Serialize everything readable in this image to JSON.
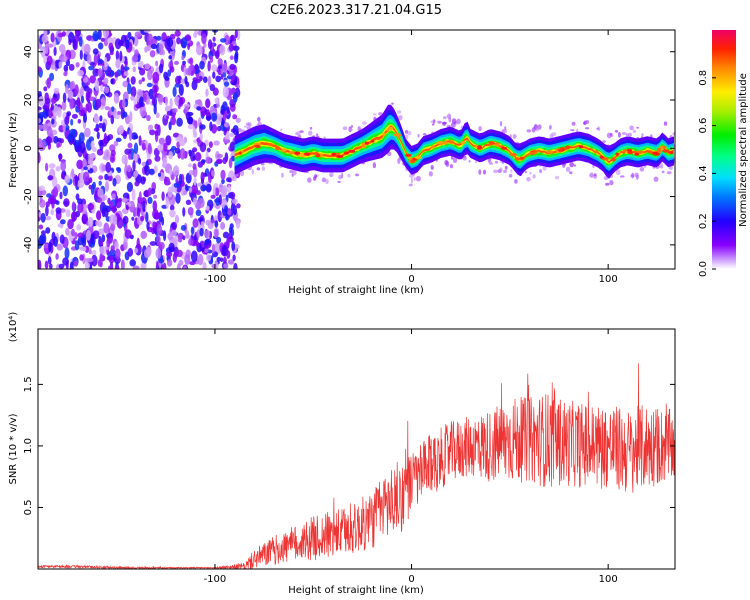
{
  "title": "C2E6.2023.317.21.04.G15",
  "chart_data": [
    {
      "type": "heatmap",
      "xlabel": "Height of straight line (km)",
      "ylabel": "Frequency (Hz)",
      "xlim": [
        -190,
        134
      ],
      "ylim": [
        -50,
        49
      ],
      "xticks": [
        -100,
        0,
        100
      ],
      "xtick_labels": [
        "-100",
        "0",
        "100"
      ],
      "yticks": [
        -40,
        -20,
        0,
        20,
        40
      ],
      "ytick_labels": [
        "-40",
        "-20",
        "0",
        "20",
        "40"
      ],
      "noise_region_x": [
        -190,
        -90
      ],
      "ridge": {
        "x": [
          -90,
          -85,
          -80,
          -75,
          -70,
          -65,
          -60,
          -55,
          -50,
          -45,
          -40,
          -35,
          -30,
          -25,
          -20,
          -15,
          -12,
          -10,
          -8,
          -5,
          -3,
          0,
          3,
          6,
          10,
          15,
          20,
          25,
          28,
          30,
          35,
          40,
          45,
          50,
          53,
          55,
          58,
          60,
          65,
          70,
          75,
          80,
          85,
          90,
          95,
          98,
          100,
          103,
          106,
          110,
          115,
          120,
          125,
          128,
          130,
          134
        ],
        "freq": [
          -3,
          -1,
          1,
          2,
          1,
          -1,
          -2,
          -3,
          -2,
          -3,
          -3,
          -3,
          -1,
          1,
          3,
          5,
          8,
          9,
          7,
          2,
          -2,
          -5,
          -4,
          -1,
          0,
          2,
          3,
          1,
          5,
          2,
          0,
          2,
          1,
          -1,
          -4,
          -5,
          -3,
          -2,
          -1,
          -2,
          -1,
          0,
          1,
          0,
          -2,
          -4,
          -6,
          -4,
          -2,
          -1,
          -2,
          -1,
          -2,
          1,
          -2,
          -1
        ],
        "width_hz": [
          8,
          8,
          8,
          8,
          7,
          7,
          7,
          7,
          7,
          7,
          7,
          7,
          7,
          7,
          8,
          9,
          10,
          9,
          8,
          7,
          6,
          6,
          6,
          6,
          6,
          6,
          6,
          6,
          7,
          6,
          6,
          6,
          6,
          6,
          6,
          7,
          6,
          6,
          6,
          6,
          6,
          6,
          6,
          6,
          6,
          6,
          7,
          6,
          6,
          6,
          6,
          6,
          6,
          6,
          6,
          6
        ]
      },
      "colorbar": {
        "label": "Normalized spectral amplitude",
        "range": [
          0,
          1
        ],
        "ticks": [
          0.0,
          0.2,
          0.4,
          0.6,
          0.8
        ],
        "tick_labels": [
          "0.0",
          "0.2",
          "0.4",
          "0.6",
          "0.8"
        ]
      }
    },
    {
      "type": "line",
      "xlabel": "Height of straight line (km)",
      "ylabel": "SNR (10 * v/v)",
      "scale_label": "(x10⁴)",
      "xlim": [
        -190,
        134
      ],
      "ylim": [
        0,
        1.95
      ],
      "xticks": [
        -100,
        0,
        100
      ],
      "xtick_labels": [
        "-100",
        "0",
        "100"
      ],
      "yticks": [
        0.5,
        1.0,
        1.5
      ],
      "ytick_labels": [
        "0.5",
        "1.0",
        "1.5"
      ],
      "series_color": "#ee3333",
      "envelope": {
        "x": [
          -190,
          -170,
          -150,
          -120,
          -100,
          -85,
          -80,
          -70,
          -60,
          -50,
          -40,
          -30,
          -20,
          -15,
          -10,
          -5,
          0,
          10,
          20,
          30,
          40,
          50,
          60,
          70,
          80,
          90,
          100,
          110,
          120,
          130,
          134
        ],
        "mean": [
          0.02,
          0.02,
          0.01,
          0.01,
          0.01,
          0.02,
          0.08,
          0.15,
          0.2,
          0.25,
          0.28,
          0.32,
          0.4,
          0.5,
          0.55,
          0.6,
          0.7,
          0.85,
          0.95,
          1.0,
          1.0,
          1.05,
          1.05,
          1.05,
          1.02,
          1.0,
          1.0,
          0.95,
          1.0,
          1.0,
          1.0
        ],
        "amp": [
          0.01,
          0.01,
          0.01,
          0.005,
          0.005,
          0.03,
          0.08,
          0.12,
          0.15,
          0.18,
          0.2,
          0.2,
          0.25,
          0.25,
          0.3,
          0.3,
          0.25,
          0.25,
          0.25,
          0.25,
          0.3,
          0.35,
          0.35,
          0.4,
          0.35,
          0.35,
          0.35,
          0.35,
          0.35,
          0.3,
          0.3
        ]
      }
    }
  ]
}
